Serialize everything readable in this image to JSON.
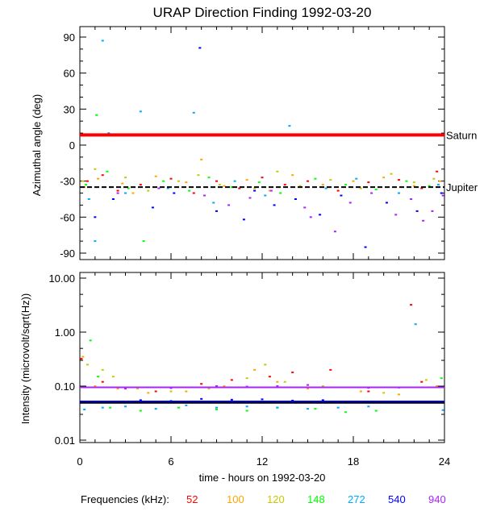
{
  "chart_data": [
    {
      "type": "scatter",
      "title": "URAP Direction Finding  1992-03-20",
      "ylabel": "Azimuthal angle (deg)",
      "xlim": [
        0,
        24
      ],
      "ylim": [
        -95,
        95
      ],
      "yticks": [
        "90",
        "60",
        "30",
        "0",
        "-30",
        "-60",
        "-90"
      ],
      "ytick_values": [
        90,
        60,
        30,
        0,
        -30,
        -60,
        -90
      ],
      "reference_lines": [
        {
          "name": "Saturn",
          "y": 8.5,
          "color": "#ff0000",
          "style": "solid"
        },
        {
          "name": "Jupiter",
          "y": -35,
          "color": "#000000",
          "style": "dashed"
        }
      ],
      "series": [
        {
          "freq": "52",
          "color": "#ff0000",
          "points": [
            [
              0.5,
              -30
            ],
            [
              1.5,
              -25
            ],
            [
              2.5,
              -38
            ],
            [
              4,
              -33
            ],
            [
              6,
              -28
            ],
            [
              7.5,
              -40
            ],
            [
              9,
              -30
            ],
            [
              10.5,
              -36
            ],
            [
              12,
              -27
            ],
            [
              13.5,
              -33
            ],
            [
              15,
              -30
            ],
            [
              17,
              -38
            ],
            [
              19,
              -31
            ],
            [
              21,
              -29
            ],
            [
              22.5,
              -36
            ],
            [
              23.5,
              -22
            ]
          ]
        },
        {
          "freq": "100",
          "color": "#ffa500",
          "points": [
            [
              0.3,
              -35
            ],
            [
              1.2,
              -28
            ],
            [
              2.8,
              -32
            ],
            [
              3.5,
              -40
            ],
            [
              5,
              -26
            ],
            [
              7,
              -31
            ],
            [
              8,
              -12
            ],
            [
              9.5,
              -34
            ],
            [
              11,
              -29
            ],
            [
              12.5,
              -38
            ],
            [
              14,
              -25
            ],
            [
              16,
              -33
            ],
            [
              18,
              -30
            ],
            [
              20,
              -27
            ],
            [
              22,
              -34
            ],
            [
              23.7,
              -30
            ]
          ]
        },
        {
          "freq": "120",
          "color": "#c8c800",
          "points": [
            [
              0.2,
              -30
            ],
            [
              1,
              -20
            ],
            [
              2,
              -35
            ],
            [
              3,
              -27
            ],
            [
              4.5,
              -38
            ],
            [
              6.5,
              -30
            ],
            [
              7.8,
              -25
            ],
            [
              9.2,
              -33
            ],
            [
              11.5,
              -36
            ],
            [
              13,
              -22
            ],
            [
              14.5,
              -34
            ],
            [
              16.5,
              -29
            ],
            [
              18.5,
              -36
            ],
            [
              20.5,
              -24
            ],
            [
              22,
              -31
            ],
            [
              23.3,
              -28
            ]
          ]
        },
        {
          "freq": "148",
          "color": "#00ff00",
          "points": [
            [
              0.4,
              -33
            ],
            [
              1.1,
              25
            ],
            [
              1.8,
              -22
            ],
            [
              3.2,
              -36
            ],
            [
              4.2,
              -80
            ],
            [
              5.5,
              -30
            ],
            [
              7.2,
              -38
            ],
            [
              8.5,
              -27
            ],
            [
              10,
              -35
            ],
            [
              11.8,
              -31
            ],
            [
              13.2,
              -40
            ],
            [
              15.5,
              -28
            ],
            [
              17.5,
              -33
            ],
            [
              19.5,
              -37
            ],
            [
              21.5,
              -30
            ],
            [
              23,
              -34
            ]
          ]
        },
        {
          "freq": "272",
          "color": "#00aaff",
          "points": [
            [
              0.6,
              -45
            ],
            [
              1,
              -80
            ],
            [
              1.5,
              87
            ],
            [
              1.9,
              10
            ],
            [
              3,
              -40
            ],
            [
              4,
              28
            ],
            [
              5.8,
              -36
            ],
            [
              7.5,
              27
            ],
            [
              8.8,
              -48
            ],
            [
              10.2,
              -30
            ],
            [
              12.2,
              -42
            ],
            [
              13.8,
              16
            ],
            [
              16.2,
              -36
            ],
            [
              18.2,
              -28
            ],
            [
              21,
              -40
            ],
            [
              23.6,
              -33
            ]
          ]
        },
        {
          "freq": "540",
          "color": "#0000ff",
          "points": [
            [
              1,
              -60
            ],
            [
              2.2,
              -45
            ],
            [
              4.8,
              -52
            ],
            [
              6.2,
              -40
            ],
            [
              7.9,
              81
            ],
            [
              9,
              -55
            ],
            [
              10.8,
              -62
            ],
            [
              11.5,
              -38
            ],
            [
              12.8,
              -50
            ],
            [
              14.2,
              -45
            ],
            [
              15.8,
              -58
            ],
            [
              17.2,
              -42
            ],
            [
              18.8,
              -85
            ],
            [
              20.2,
              -48
            ],
            [
              22.2,
              -55
            ],
            [
              23.8,
              -40
            ]
          ]
        },
        {
          "freq": "940",
          "color": "#aa22ff",
          "points": [
            [
              2.5,
              -40
            ],
            [
              5.2,
              -36
            ],
            [
              8.2,
              -42
            ],
            [
              9.8,
              -50
            ],
            [
              11.2,
              -44
            ],
            [
              12.6,
              -38
            ],
            [
              14.8,
              -52
            ],
            [
              16.8,
              -72
            ],
            [
              17.8,
              -48
            ],
            [
              19.2,
              -40
            ],
            [
              20.8,
              -58
            ],
            [
              21.8,
              -45
            ],
            [
              22.6,
              -63
            ],
            [
              23.2,
              -55
            ],
            [
              23.9,
              -42
            ],
            [
              15.2,
              -60
            ]
          ]
        }
      ]
    },
    {
      "type": "scatter",
      "ylabel": "Intensity (microvolt/sqrt(Hz))",
      "xlabel": "time - hours on 1992-03-20",
      "xlim": [
        0,
        24
      ],
      "xticks": [
        "0",
        "6",
        "12",
        "18",
        "24"
      ],
      "xtick_values": [
        0,
        6,
        12,
        18,
        24
      ],
      "ylim": [
        0.01,
        10
      ],
      "yscale": "log",
      "yticks": [
        "10.00",
        "1.00",
        "0.10",
        "0.01"
      ],
      "ytick_values": [
        10,
        1,
        0.1,
        0.01
      ],
      "reference_lines": [
        {
          "y": 0.095,
          "color": "#aa22ff"
        },
        {
          "y": 0.052,
          "color": "#0000ff"
        },
        {
          "y": 0.049,
          "color": "#000000"
        }
      ],
      "series": [
        {
          "freq": "52",
          "color": "#ff0000",
          "points": [
            [
              0.1,
              0.32
            ],
            [
              1.5,
              0.12
            ],
            [
              3,
              0.09
            ],
            [
              5,
              0.08
            ],
            [
              8,
              0.11
            ],
            [
              10,
              0.13
            ],
            [
              12.5,
              0.15
            ],
            [
              14,
              0.18
            ],
            [
              16.5,
              0.2
            ],
            [
              19,
              0.08
            ],
            [
              21.8,
              3.2
            ],
            [
              22.5,
              0.12
            ]
          ]
        },
        {
          "freq": "100",
          "color": "#ffa500",
          "points": [
            [
              0.2,
              0.35
            ],
            [
              1,
              0.1
            ],
            [
              2.5,
              0.09
            ],
            [
              4.5,
              0.075
            ],
            [
              7,
              0.08
            ],
            [
              9.5,
              0.1
            ],
            [
              11.5,
              0.2
            ],
            [
              13,
              0.12
            ],
            [
              15,
              0.09
            ],
            [
              18.5,
              0.08
            ],
            [
              21,
              0.07
            ],
            [
              23.5,
              0.1
            ]
          ]
        },
        {
          "freq": "120",
          "color": "#c8c800",
          "points": [
            [
              0.5,
              0.25
            ],
            [
              1.5,
              0.2
            ],
            [
              2.2,
              0.15
            ],
            [
              3.8,
              0.09
            ],
            [
              6,
              0.08
            ],
            [
              8.5,
              0.09
            ],
            [
              11,
              0.14
            ],
            [
              12.2,
              0.25
            ],
            [
              13.5,
              0.12
            ],
            [
              16,
              0.1
            ],
            [
              20,
              0.075
            ],
            [
              22.8,
              0.13
            ]
          ]
        },
        {
          "freq": "148",
          "color": "#00ff00",
          "points": [
            [
              0.7,
              0.7
            ],
            [
              1.2,
              0.15
            ],
            [
              2,
              0.04
            ],
            [
              4,
              0.035
            ],
            [
              6.5,
              0.04
            ],
            [
              9,
              0.037
            ],
            [
              11,
              0.035
            ],
            [
              13,
              0.04
            ],
            [
              15.5,
              0.038
            ],
            [
              17.5,
              0.033
            ],
            [
              19.5,
              0.035
            ],
            [
              23.8,
              0.14
            ]
          ]
        },
        {
          "freq": "272",
          "color": "#00aaff",
          "points": [
            [
              0.3,
              0.037
            ],
            [
              1.5,
              0.04
            ],
            [
              3,
              0.042
            ],
            [
              5,
              0.038
            ],
            [
              7,
              0.044
            ],
            [
              9,
              0.04
            ],
            [
              11,
              0.042
            ],
            [
              13,
              0.04
            ],
            [
              15,
              0.038
            ],
            [
              17,
              0.04
            ],
            [
              19,
              0.042
            ],
            [
              22.1,
              1.4
            ],
            [
              23.9,
              0.036
            ]
          ]
        },
        {
          "freq": "540",
          "color": "#0000ff",
          "points": [
            [
              0.5,
              0.052
            ],
            [
              2,
              0.05
            ],
            [
              4,
              0.055
            ],
            [
              6,
              0.053
            ],
            [
              8,
              0.058
            ],
            [
              10,
              0.056
            ],
            [
              12,
              0.057
            ],
            [
              14,
              0.054
            ],
            [
              16,
              0.055
            ],
            [
              18,
              0.052
            ],
            [
              20,
              0.05
            ],
            [
              23,
              0.05
            ]
          ]
        },
        {
          "freq": "940",
          "color": "#aa22ff",
          "points": [
            [
              0.5,
              0.095
            ],
            [
              3,
              0.09
            ],
            [
              6,
              0.092
            ],
            [
              9,
              0.1
            ],
            [
              11,
              0.098
            ],
            [
              13,
              0.1
            ],
            [
              15,
              0.105
            ],
            [
              17,
              0.095
            ],
            [
              19,
              0.093
            ],
            [
              21,
              0.094
            ],
            [
              23,
              0.095
            ]
          ]
        }
      ]
    }
  ],
  "legend": {
    "label": "Frequencies (kHz):",
    "items": [
      {
        "text": "52",
        "color": "#ff0000"
      },
      {
        "text": "100",
        "color": "#ffa500"
      },
      {
        "text": "120",
        "color": "#c8c800"
      },
      {
        "text": "148",
        "color": "#00ff00"
      },
      {
        "text": "272",
        "color": "#00aaff"
      },
      {
        "text": "540",
        "color": "#0000ff"
      },
      {
        "text": "940",
        "color": "#aa22ff"
      }
    ]
  }
}
